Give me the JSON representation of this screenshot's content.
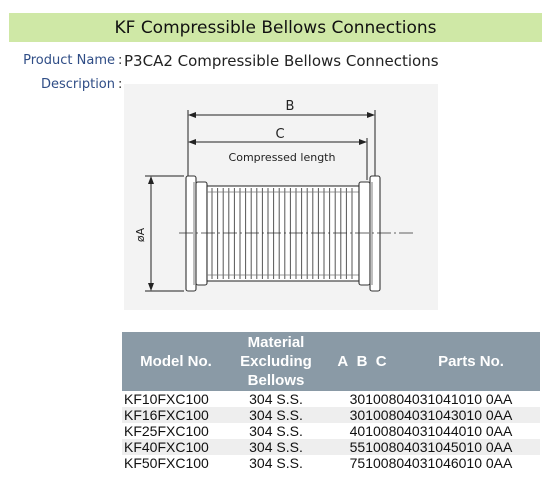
{
  "title": "KF Compressible Bellows Connections",
  "product_name_label": "Product Name",
  "product_name_value": "P3CA2 Compressible Bellows Connections",
  "description_label": "Description",
  "separator": ":",
  "drawing": {
    "label_b": "B",
    "label_c": "C",
    "compressed_length": "Compressed length",
    "diameter_a": "øA"
  },
  "table": {
    "headers": {
      "model": "Model No.",
      "material_1": "Material",
      "material_2": "Excluding",
      "material_3": "Bellows",
      "a": "A",
      "b": "B",
      "c": "C",
      "parts": "Parts No."
    },
    "rows": [
      {
        "model": "KF10FXC100",
        "material": "304 S.S.",
        "abc_parts": "30100804031041010 0AA"
      },
      {
        "model": "KF16FXC100",
        "material": "304 S.S.",
        "abc_parts": "30100804031043010 0AA"
      },
      {
        "model": "KF25FXC100",
        "material": "304 S.S.",
        "abc_parts": "40100804031044010 0AA"
      },
      {
        "model": "KF40FXC100",
        "material": "304 S.S.",
        "abc_parts": "55100804031045010 0AA"
      },
      {
        "model": "KF50FXC100",
        "material": "304 S.S.",
        "abc_parts": "75100804031046010 0AA"
      }
    ]
  }
}
